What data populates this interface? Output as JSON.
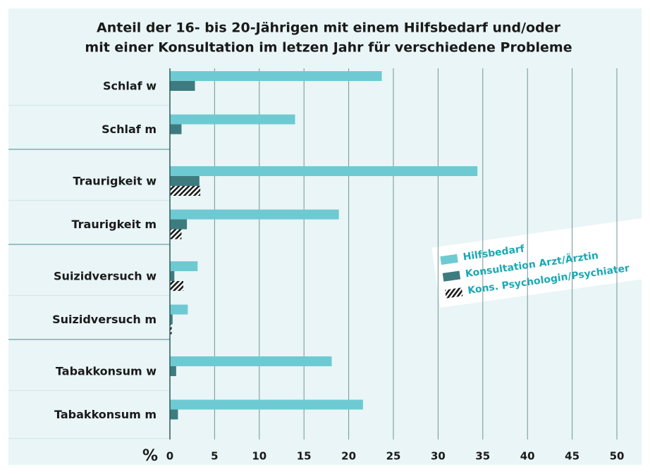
{
  "chart_data": {
    "type": "bar",
    "orientation": "horizontal",
    "title": [
      "Anteil der 16- bis 20-Jährigen mit einem Hilfsbedarf und/oder",
      "mit einer Konsultation im letzen Jahr für verschiedene Probleme"
    ],
    "xlabel": "%",
    "categories": [
      "Schlaf w",
      "Schlaf m",
      "Traurigkeit w",
      "Traurigkeit m",
      "Suizidversuch w",
      "Suizidversuch m",
      "Tabakkonsum w",
      "Tabakkonsum m"
    ],
    "series": [
      {
        "name": "Hilfsbedarf",
        "color": "#6ecad2",
        "values": [
          23.7,
          14.0,
          34.4,
          18.9,
          3.1,
          2.0,
          18.1,
          21.6
        ]
      },
      {
        "name": "Konsultation Arzt/Ärztin",
        "color": "#3d7b7f",
        "values": [
          2.8,
          1.3,
          3.3,
          1.9,
          0.5,
          0.3,
          0.7,
          0.9
        ]
      },
      {
        "name": "Kons. Psychologin/Psychiater",
        "color": "#1a1a1a",
        "values": [
          null,
          null,
          3.4,
          1.3,
          1.5,
          0.2,
          null,
          null
        ]
      }
    ],
    "xlim": [
      0,
      50
    ],
    "xticks": [
      0,
      5,
      10,
      15,
      20,
      25,
      30,
      35,
      40,
      45,
      50
    ],
    "grid": true
  }
}
